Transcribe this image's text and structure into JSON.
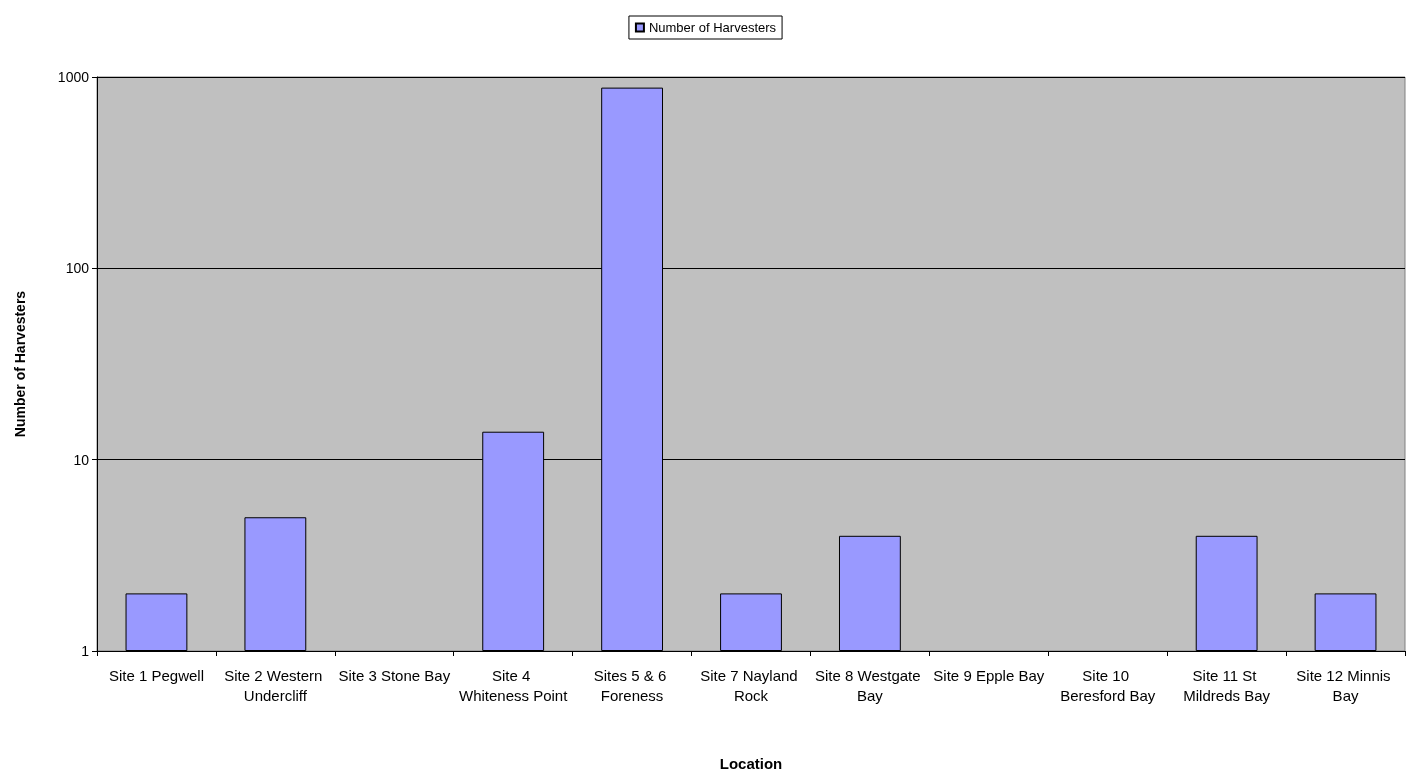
{
  "chart_data": {
    "type": "bar",
    "xlabel": "Location",
    "ylabel": "Number of Harvesters",
    "categories": [
      "Site 1 Pegwell",
      "Site 2 Western Undercliff",
      "Site 3 Stone Bay",
      "Site 4 Whiteness Point",
      "Sites 5 & 6 Foreness",
      "Site 7 Nayland Rock",
      "Site 8 Westgate Bay",
      "Site 9 Epple Bay",
      "Site 10 Beresford Bay",
      "Site 11 St Mildreds Bay",
      "Site 12 Minnis Bay"
    ],
    "series": [
      {
        "name": "Number of Harvesters",
        "color": "#9999ff",
        "values": [
          2,
          5,
          null,
          14,
          880,
          2,
          4,
          null,
          null,
          4,
          2
        ]
      }
    ],
    "log": "y",
    "ylim": [
      1,
      1000
    ],
    "yticks": [
      1,
      10,
      100,
      1000
    ],
    "grid": "y",
    "legend": "top"
  }
}
